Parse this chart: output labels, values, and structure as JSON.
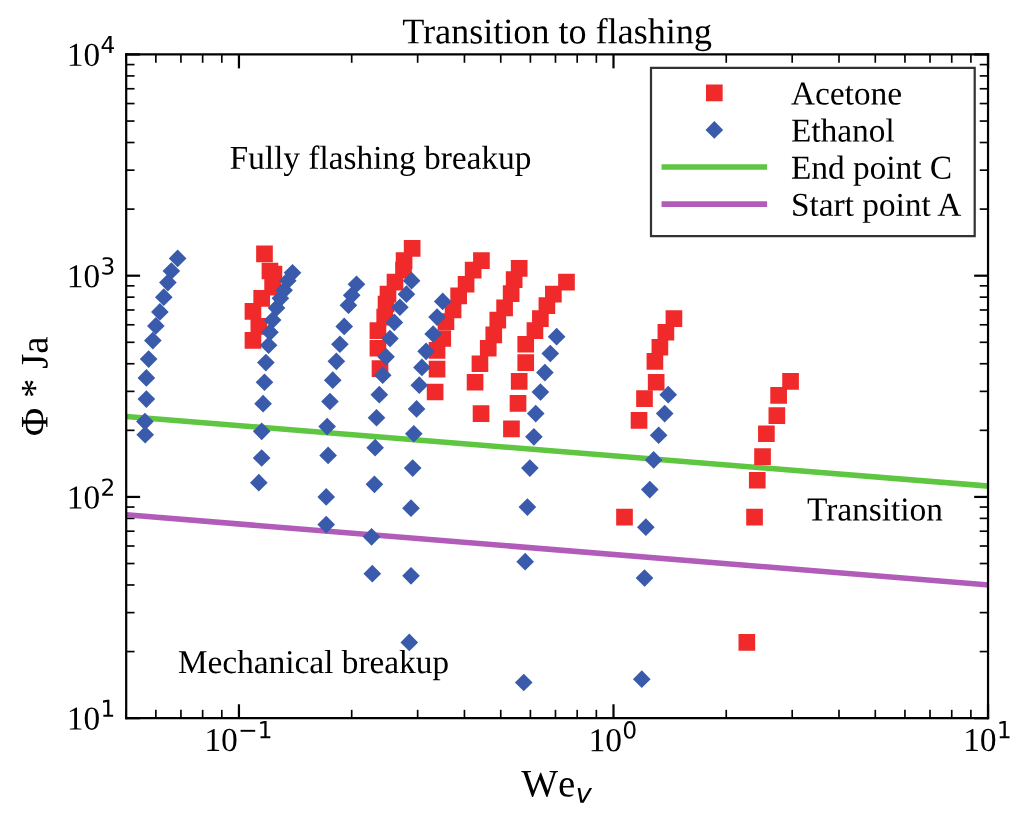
{
  "chart_data": {
    "type": "scatter",
    "title": "Transition to flashing",
    "xlabel": "We$_{v}$",
    "ylabel": "Φ * Ja",
    "log": "xy",
    "grid": false,
    "legend": "top right",
    "xlim": [
      0.05,
      10
    ],
    "ylim": [
      10,
      10000
    ],
    "xticks": [
      {
        "value": 0.1,
        "label": "10$^{−1}$"
      },
      {
        "value": 1,
        "label": "10$^{0}$"
      },
      {
        "value": 10,
        "label": "10$^{1}$"
      }
    ],
    "yticks": [
      {
        "value": 10,
        "label": "10$^{1}$"
      },
      {
        "value": 100,
        "label": "10$^{2}$"
      },
      {
        "value": 1000,
        "label": "10$^{3}$"
      },
      {
        "value": 10000,
        "label": "10$^{4}$"
      }
    ],
    "annotations": [
      "Fully flashing breakup",
      "Transition",
      "Mechanical breakup"
    ],
    "series": [
      {
        "name": "Acetone",
        "marker": "square",
        "color": "#f02a2a",
        "x": [
          0.117,
          0.121,
          0.124,
          0.123,
          0.115,
          0.109,
          0.113,
          0.109,
          0.29,
          0.276,
          0.275,
          0.261,
          0.25,
          0.247,
          0.245,
          0.235,
          0.235,
          0.238,
          0.444,
          0.422,
          0.404,
          0.386,
          0.373,
          0.357,
          0.35,
          0.338,
          0.338,
          0.334,
          0.56,
          0.543,
          0.533,
          0.512,
          0.491,
          0.479,
          0.463,
          0.44,
          0.427,
          0.443,
          0.749,
          0.691,
          0.664,
          0.638,
          0.617,
          0.583,
          0.583,
          0.56,
          0.556,
          0.534,
          1.45,
          1.38,
          1.33,
          1.29,
          1.3,
          1.21,
          1.17,
          1.07,
          2.97,
          2.76,
          2.73,
          2.56,
          2.5,
          2.42,
          2.38,
          2.27
        ],
        "values": [
          1255,
          1050,
          1018,
          887,
          790,
          690,
          590,
          510,
          1330,
          1170,
          1060,
          935,
          825,
          745,
          650,
          565,
          470,
          380,
          1170,
          1060,
          915,
          810,
          700,
          620,
          520,
          460,
          378,
          298,
          1080,
          960,
          830,
          715,
          630,
          540,
          470,
          400,
          330,
          238,
          935,
          825,
          733,
          640,
          565,
          490,
          405,
          333,
          265,
          203,
          640,
          555,
          475,
          410,
          330,
          278,
          222,
          81,
          333,
          288,
          233,
          193,
          152,
          119,
          81,
          22
        ]
      },
      {
        "name": "Ethanol",
        "marker": "diamond",
        "color": "#3a5bab",
        "x": [
          0.0686,
          0.066,
          0.0646,
          0.063,
          0.0615,
          0.06,
          0.0589,
          0.0574,
          0.0566,
          0.0566,
          0.0561,
          0.0562,
          0.139,
          0.135,
          0.132,
          0.129,
          0.126,
          0.123,
          0.121,
          0.12,
          0.118,
          0.117,
          0.116,
          0.115,
          0.115,
          0.113,
          0.206,
          0.2,
          0.196,
          0.191,
          0.186,
          0.182,
          0.178,
          0.175,
          0.172,
          0.173,
          0.171,
          0.171,
          0.289,
          0.28,
          0.269,
          0.26,
          0.253,
          0.247,
          0.242,
          0.237,
          0.233,
          0.231,
          0.23,
          0.226,
          0.227,
          0.35,
          0.338,
          0.33,
          0.316,
          0.308,
          0.303,
          0.298,
          0.293,
          0.291,
          0.288,
          0.288,
          0.285,
          0.705,
          0.678,
          0.656,
          0.638,
          0.62,
          0.613,
          0.598,
          0.589,
          0.581,
          0.576,
          1.4,
          1.37,
          1.32,
          1.28,
          1.25,
          1.22,
          1.21,
          1.19
        ],
        "values": [
          1197,
          1050,
          931,
          800,
          686,
          593,
          509,
          420,
          345,
          277,
          219,
          191,
          1030,
          950,
          860,
          790,
          715,
          630,
          555,
          485,
          405,
          330,
          264,
          198,
          150,
          116,
          915,
          815,
          735,
          590,
          490,
          410,
          337,
          270,
          208,
          154,
          100,
          75,
          950,
          825,
          720,
          615,
          520,
          430,
          355,
          290,
          228,
          167,
          114,
          66,
          45,
          765,
          650,
          545,
          455,
          385,
          320,
          250,
          193,
          135,
          89,
          44,
          22,
          530,
          445,
          365,
          298,
          238,
          187,
          135,
          90,
          51,
          14.5,
          290,
          238,
          190,
          147,
          108,
          73,
          43,
          15
        ]
      },
      {
        "name": "End point C",
        "type": "line",
        "line_style": "solid",
        "color": "#5ec641",
        "x": [
          0.05,
          10
        ],
        "values": [
          231,
          112
        ]
      },
      {
        "name": "Start point A",
        "type": "line",
        "line_style": "solid",
        "color": "#b05cb8",
        "x": [
          0.05,
          10
        ],
        "values": [
          83,
          40
        ]
      }
    ]
  }
}
